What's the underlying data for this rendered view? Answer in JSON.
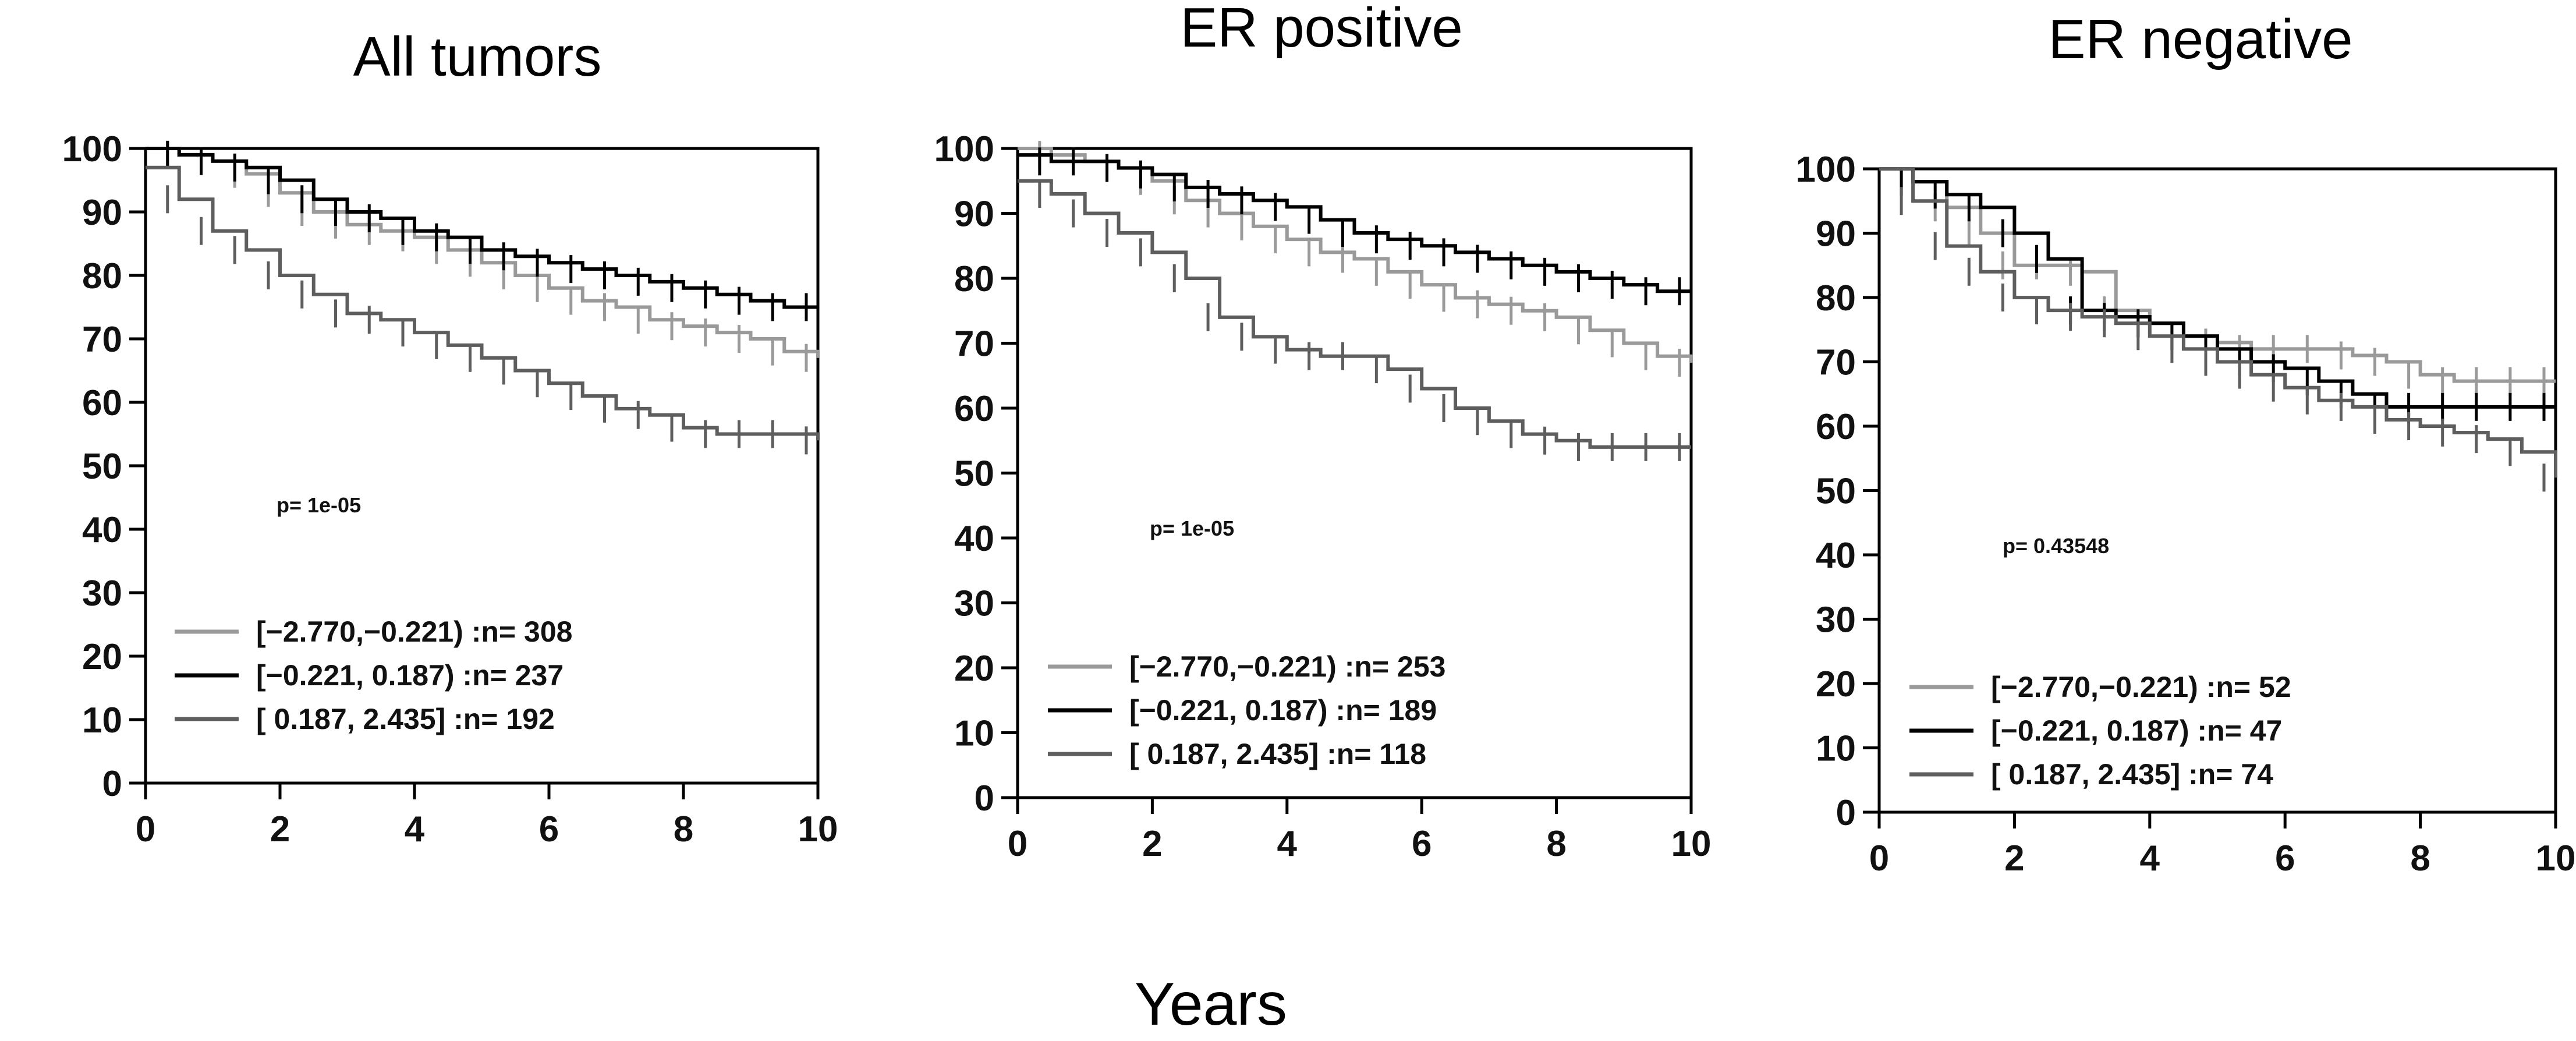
{
  "figure": {
    "xlabel": "Years"
  },
  "chart_data": [
    {
      "type": "line",
      "title": "All tumors",
      "xlabel": "",
      "ylabel": "",
      "xlim": [
        0,
        10
      ],
      "ylim": [
        0,
        100
      ],
      "xticks": [
        0,
        2,
        4,
        6,
        8,
        10
      ],
      "yticks": [
        0,
        10,
        20,
        30,
        40,
        50,
        60,
        70,
        80,
        90,
        100
      ],
      "annotation": "p= 1e-05",
      "legend_position": "bottom-left",
      "series": [
        {
          "name": "[−2.770,−0.221) :n= 308",
          "color": "#9a9a9a",
          "x": [
            0,
            0.5,
            1,
            1.5,
            2,
            2.5,
            3,
            3.5,
            4,
            4.5,
            5,
            5.5,
            6,
            6.5,
            7,
            7.5,
            8,
            8.5,
            9,
            9.5,
            10
          ],
          "y": [
            100,
            99,
            98,
            96,
            93,
            90,
            88,
            87,
            86,
            84,
            82,
            80,
            78,
            76,
            75,
            73,
            72,
            71,
            70,
            68,
            67
          ]
        },
        {
          "name": "[−0.221, 0.187) :n= 237",
          "color": "#000000",
          "x": [
            0,
            0.5,
            1,
            1.5,
            2,
            2.5,
            3,
            3.5,
            4,
            4.5,
            5,
            5.5,
            6,
            6.5,
            7,
            7.5,
            8,
            8.5,
            9,
            9.5,
            10
          ],
          "y": [
            100,
            99,
            98,
            97,
            95,
            92,
            90,
            89,
            87,
            86,
            84,
            83,
            82,
            81,
            80,
            79,
            78,
            77,
            76,
            75,
            75
          ]
        },
        {
          "name": "[ 0.187, 2.435] :n= 192",
          "color": "#5e5e5e",
          "x": [
            0,
            0.5,
            1,
            1.5,
            2,
            2.5,
            3,
            3.5,
            4,
            4.5,
            5,
            5.5,
            6,
            6.5,
            7,
            7.5,
            8,
            8.5,
            9,
            9.5,
            10
          ],
          "y": [
            97,
            92,
            87,
            84,
            80,
            77,
            74,
            73,
            71,
            69,
            67,
            65,
            63,
            61,
            59,
            58,
            56,
            55,
            55,
            55,
            54
          ]
        }
      ]
    },
    {
      "type": "line",
      "title": "ER positive",
      "xlabel": "",
      "ylabel": "",
      "xlim": [
        0,
        10
      ],
      "ylim": [
        0,
        100
      ],
      "xticks": [
        0,
        2,
        4,
        6,
        8,
        10
      ],
      "yticks": [
        0,
        10,
        20,
        30,
        40,
        50,
        60,
        70,
        80,
        90,
        100
      ],
      "annotation": "p= 1e-05",
      "legend_position": "bottom-left",
      "series": [
        {
          "name": "[−2.770,−0.221) :n= 253",
          "color": "#9a9a9a",
          "x": [
            0,
            0.5,
            1,
            1.5,
            2,
            2.5,
            3,
            3.5,
            4,
            4.5,
            5,
            5.5,
            6,
            6.5,
            7,
            7.5,
            8,
            8.5,
            9,
            9.5,
            10
          ],
          "y": [
            100,
            99,
            98,
            97,
            95,
            92,
            90,
            88,
            86,
            84,
            83,
            81,
            79,
            77,
            76,
            75,
            74,
            72,
            70,
            68,
            67
          ]
        },
        {
          "name": "[−0.221, 0.187) :n= 189",
          "color": "#000000",
          "x": [
            0,
            0.5,
            1,
            1.5,
            2,
            2.5,
            3,
            3.5,
            4,
            4.5,
            5,
            5.5,
            6,
            6.5,
            7,
            7.5,
            8,
            8.5,
            9,
            9.5,
            10
          ],
          "y": [
            99,
            98,
            98,
            97,
            96,
            94,
            93,
            92,
            91,
            89,
            87,
            86,
            85,
            84,
            83,
            82,
            81,
            80,
            79,
            78,
            78
          ]
        },
        {
          "name": "[ 0.187, 2.435] :n= 118",
          "color": "#5e5e5e",
          "x": [
            0,
            0.5,
            1,
            1.5,
            2,
            2.5,
            3,
            3.5,
            4,
            4.5,
            5,
            5.5,
            6,
            6.5,
            7,
            7.5,
            8,
            8.5,
            9,
            9.5,
            10
          ],
          "y": [
            95,
            93,
            90,
            87,
            84,
            80,
            74,
            71,
            69,
            68,
            68,
            66,
            63,
            60,
            58,
            56,
            55,
            54,
            54,
            54,
            54
          ]
        }
      ]
    },
    {
      "type": "line",
      "title": "ER negative",
      "xlabel": "",
      "ylabel": "",
      "xlim": [
        0,
        10
      ],
      "ylim": [
        0,
        100
      ],
      "xticks": [
        0,
        2,
        4,
        6,
        8,
        10
      ],
      "yticks": [
        0,
        10,
        20,
        30,
        40,
        50,
        60,
        70,
        80,
        90,
        100
      ],
      "annotation": "p= 0.43548",
      "legend_position": "bottom-left",
      "series": [
        {
          "name": "[−2.770,−0.221) :n= 52",
          "color": "#9a9a9a",
          "x": [
            0,
            0.5,
            1,
            1.5,
            2,
            2.5,
            3,
            3.5,
            4,
            4.5,
            5,
            5.5,
            6,
            6.5,
            7,
            7.5,
            8,
            8.5,
            9,
            9.5,
            10
          ],
          "y": [
            100,
            98,
            94,
            90,
            85,
            85,
            84,
            78,
            76,
            74,
            73,
            72,
            72,
            72,
            71,
            70,
            68,
            67,
            67,
            67,
            67
          ]
        },
        {
          "name": "[−0.221, 0.187) :n= 47",
          "color": "#000000",
          "x": [
            0,
            0.5,
            1,
            1.5,
            2,
            2.5,
            3,
            3.5,
            4,
            4.5,
            5,
            5.5,
            6,
            6.5,
            7,
            7.5,
            8,
            8.5,
            9,
            9.5,
            10
          ],
          "y": [
            100,
            98,
            96,
            94,
            90,
            86,
            78,
            77,
            76,
            74,
            72,
            70,
            69,
            67,
            65,
            63,
            63,
            63,
            63,
            63,
            63
          ]
        },
        {
          "name": "[ 0.187, 2.435] :n= 74",
          "color": "#5e5e5e",
          "x": [
            0,
            0.5,
            1,
            1.5,
            2,
            2.5,
            3,
            3.5,
            4,
            4.5,
            5,
            5.5,
            6,
            6.5,
            7,
            7.5,
            8,
            8.5,
            9,
            9.5,
            10
          ],
          "y": [
            100,
            95,
            88,
            84,
            80,
            78,
            77,
            76,
            74,
            72,
            70,
            68,
            66,
            64,
            63,
            61,
            60,
            59,
            58,
            56,
            52
          ]
        }
      ]
    }
  ]
}
